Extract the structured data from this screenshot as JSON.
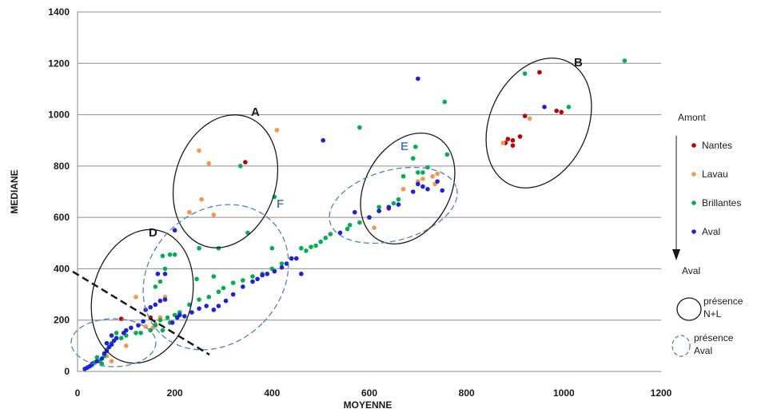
{
  "chart_data": {
    "type": "scatter",
    "xlabel": "MOYENNE",
    "ylabel": "MEDIANE",
    "xlim": [
      0,
      1200
    ],
    "ylim": [
      0,
      1400
    ],
    "xticks": [
      "0",
      "200",
      "400",
      "600",
      "800",
      "1000",
      "1200"
    ],
    "yticks": [
      "0",
      "200",
      "400",
      "600",
      "800",
      "1000",
      "1200",
      "1400"
    ],
    "grid": "horizontal",
    "colors": {
      "Nantes": "#c00000",
      "Lavau": "#f79646",
      "Brillantes": "#00b050",
      "Aval": "#1f1fe0",
      "solid_ellipse": "#1a1a1a",
      "dashed_ellipse": "#4f81bd",
      "diagonal": "#1a1a1a"
    },
    "series": [
      {
        "name": "Nantes",
        "points": [
          [
            345,
            815
          ],
          [
            90,
            205
          ],
          [
            150,
            210
          ],
          [
            640,
            635
          ],
          [
            880,
            890
          ],
          [
            885,
            905
          ],
          [
            895,
            900
          ],
          [
            895,
            880
          ],
          [
            910,
            915
          ],
          [
            920,
            995
          ],
          [
            950,
            1165
          ],
          [
            985,
            1015
          ],
          [
            995,
            1010
          ]
        ]
      },
      {
        "name": "Lavau",
        "points": [
          [
            250,
            860
          ],
          [
            270,
            810
          ],
          [
            255,
            670
          ],
          [
            230,
            620
          ],
          [
            280,
            610
          ],
          [
            410,
            940
          ],
          [
            120,
            290
          ],
          [
            125,
            180
          ],
          [
            140,
            175
          ],
          [
            160,
            185
          ],
          [
            180,
            290
          ],
          [
            60,
            60
          ],
          [
            70,
            40
          ],
          [
            100,
            100
          ],
          [
            155,
            170
          ],
          [
            170,
            210
          ],
          [
            670,
            710
          ],
          [
            700,
            740
          ],
          [
            730,
            760
          ],
          [
            740,
            770
          ],
          [
            735,
            730
          ],
          [
            710,
            750
          ],
          [
            610,
            560
          ],
          [
            875,
            890
          ],
          [
            930,
            985
          ]
        ]
      },
      {
        "name": "Brillantes",
        "points": [
          [
            335,
            800
          ],
          [
            405,
            680
          ],
          [
            580,
            950
          ],
          [
            695,
            875
          ],
          [
            755,
            1050
          ],
          [
            760,
            845
          ],
          [
            920,
            1160
          ],
          [
            1010,
            1030
          ],
          [
            1125,
            1210
          ],
          [
            20,
            15
          ],
          [
            30,
            25
          ],
          [
            35,
            35
          ],
          [
            40,
            55
          ],
          [
            45,
            40
          ],
          [
            50,
            30
          ],
          [
            55,
            60
          ],
          [
            60,
            85
          ],
          [
            70,
            110
          ],
          [
            80,
            150
          ],
          [
            90,
            130
          ],
          [
            100,
            140
          ],
          [
            120,
            150
          ],
          [
            130,
            150
          ],
          [
            150,
            160
          ],
          [
            160,
            180
          ],
          [
            170,
            200
          ],
          [
            175,
            160
          ],
          [
            185,
            210
          ],
          [
            190,
            190
          ],
          [
            200,
            220
          ],
          [
            210,
            230
          ],
          [
            230,
            260
          ],
          [
            250,
            280
          ],
          [
            270,
            290
          ],
          [
            290,
            310
          ],
          [
            300,
            325
          ],
          [
            320,
            345
          ],
          [
            340,
            355
          ],
          [
            360,
            370
          ],
          [
            380,
            380
          ],
          [
            400,
            400
          ],
          [
            420,
            420
          ],
          [
            440,
            440
          ],
          [
            460,
            480
          ],
          [
            470,
            470
          ],
          [
            480,
            485
          ],
          [
            490,
            490
          ],
          [
            500,
            505
          ],
          [
            510,
            520
          ],
          [
            520,
            535
          ],
          [
            540,
            540
          ],
          [
            555,
            555
          ],
          [
            560,
            570
          ],
          [
            580,
            580
          ],
          [
            600,
            600
          ],
          [
            620,
            640
          ],
          [
            640,
            640
          ],
          [
            650,
            655
          ],
          [
            660,
            670
          ],
          [
            670,
            760
          ],
          [
            700,
            775
          ],
          [
            710,
            775
          ],
          [
            720,
            795
          ],
          [
            690,
            830
          ],
          [
            175,
            450
          ],
          [
            190,
            455
          ],
          [
            200,
            455
          ],
          [
            180,
            400
          ],
          [
            170,
            350
          ],
          [
            160,
            330
          ],
          [
            250,
            480
          ],
          [
            290,
            480
          ],
          [
            350,
            540
          ],
          [
            400,
            480
          ],
          [
            245,
            360
          ],
          [
            280,
            370
          ]
        ]
      },
      {
        "name": "Aval",
        "points": [
          [
            700,
            1140
          ],
          [
            505,
            900
          ],
          [
            960,
            1030
          ],
          [
            15,
            10
          ],
          [
            20,
            15
          ],
          [
            25,
            20
          ],
          [
            30,
            30
          ],
          [
            40,
            40
          ],
          [
            50,
            50
          ],
          [
            55,
            70
          ],
          [
            60,
            80
          ],
          [
            65,
            95
          ],
          [
            70,
            105
          ],
          [
            75,
            120
          ],
          [
            80,
            130
          ],
          [
            60,
            110
          ],
          [
            70,
            140
          ],
          [
            95,
            150
          ],
          [
            100,
            160
          ],
          [
            110,
            170
          ],
          [
            125,
            180
          ],
          [
            135,
            195
          ],
          [
            140,
            240
          ],
          [
            150,
            250
          ],
          [
            160,
            260
          ],
          [
            170,
            275
          ],
          [
            180,
            280
          ],
          [
            195,
            190
          ],
          [
            205,
            210
          ],
          [
            210,
            220
          ],
          [
            220,
            215
          ],
          [
            235,
            230
          ],
          [
            250,
            245
          ],
          [
            265,
            255
          ],
          [
            280,
            240
          ],
          [
            290,
            255
          ],
          [
            305,
            275
          ],
          [
            320,
            300
          ],
          [
            340,
            330
          ],
          [
            360,
            350
          ],
          [
            370,
            360
          ],
          [
            380,
            375
          ],
          [
            390,
            380
          ],
          [
            405,
            390
          ],
          [
            420,
            405
          ],
          [
            430,
            420
          ],
          [
            440,
            440
          ],
          [
            450,
            440
          ],
          [
            460,
            380
          ],
          [
            200,
            550
          ],
          [
            165,
            380
          ],
          [
            180,
            380
          ],
          [
            540,
            540
          ],
          [
            570,
            620
          ],
          [
            600,
            600
          ],
          [
            620,
            625
          ],
          [
            640,
            640
          ],
          [
            660,
            650
          ],
          [
            690,
            700
          ],
          [
            700,
            730
          ],
          [
            710,
            720
          ],
          [
            720,
            710
          ],
          [
            740,
            740
          ],
          [
            750,
            705
          ]
        ]
      }
    ],
    "annotations": [
      "A",
      "B",
      "D",
      "E",
      "F"
    ],
    "legend": {
      "title_top": "Amont",
      "title_bottom": "Aval",
      "presence_nl": "présence N+L",
      "presence_aval": "présence Aval"
    }
  }
}
